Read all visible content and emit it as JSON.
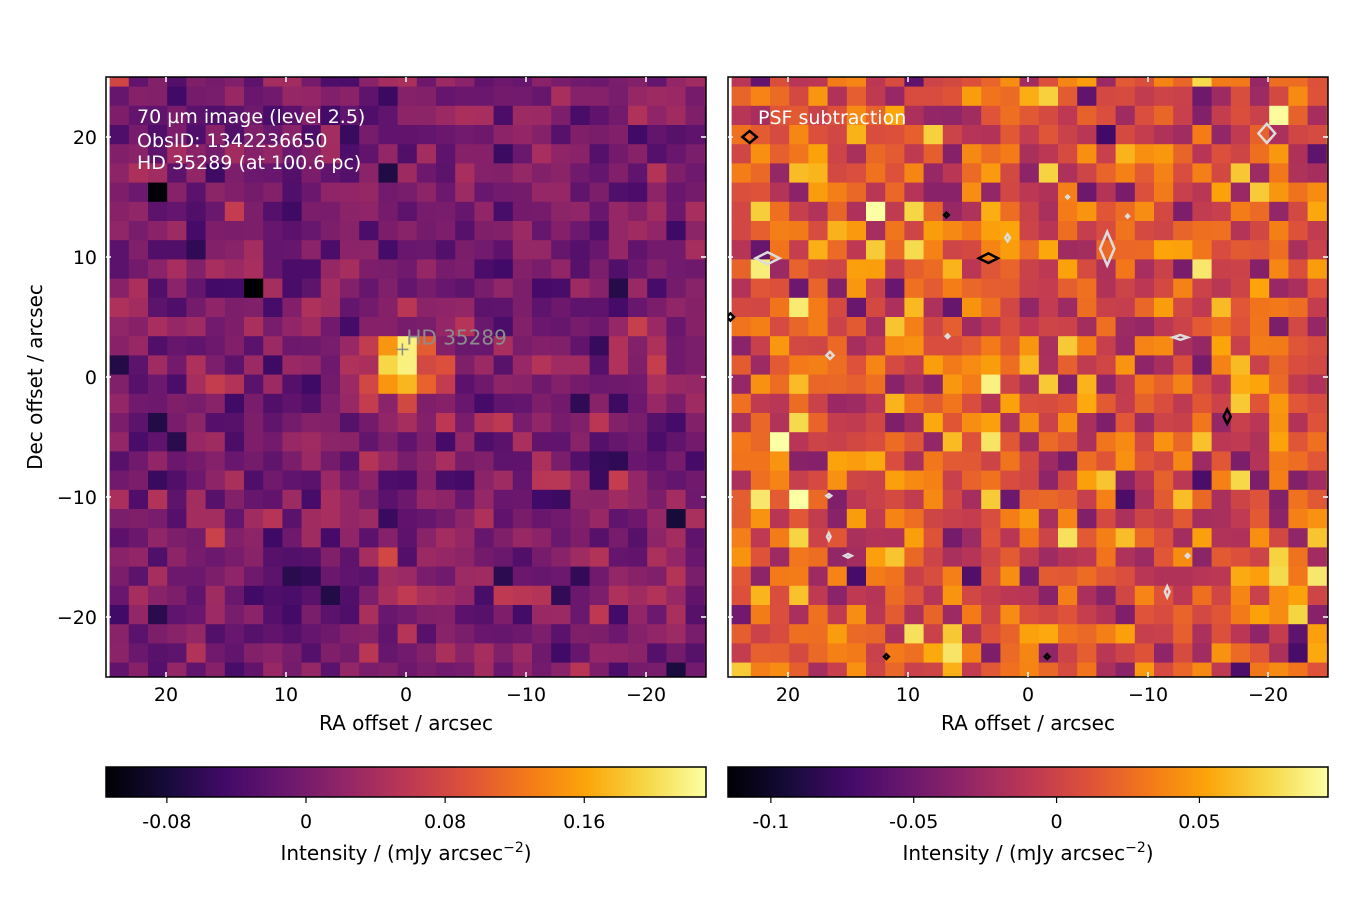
{
  "chart_data": [
    {
      "type": "heatmap",
      "panel": "left",
      "annotations": [
        "70 µm image (level 2.5)",
        "ObsID: 1342236650",
        "HD 35289 (at 100.6 pc)"
      ],
      "star_label": "HD 35289",
      "star_position": [
        0.3,
        2.3
      ],
      "xlabel": "RA offset / arcsec",
      "ylabel": "Dec offset / arcsec",
      "xlim": [
        25,
        -25
      ],
      "ylim": [
        -25,
        25
      ],
      "x_ticks": [
        20,
        10,
        0,
        -10,
        -20
      ],
      "y_ticks": [
        20,
        10,
        0,
        -10,
        -20
      ],
      "x_tick_labels": [
        "20",
        "10",
        "0",
        "−10",
        "−20"
      ],
      "y_tick_labels": [
        "20",
        "10",
        "0",
        "−10",
        "−20"
      ],
      "pixel_size_arcsec": 1.6,
      "grid_n": 32,
      "colormap": "inferno",
      "vmin": -0.115,
      "vmax": 0.23,
      "source_peak": {
        "x": 0.3,
        "y": 0.8,
        "peak": 0.215,
        "sigma": 2.2
      },
      "colorbar": {
        "label": "Intensity / (mJy arcsec",
        "label_exp": "−2",
        "label_end": ")",
        "ticks": [
          -0.08,
          0,
          0.08,
          0.16
        ],
        "tick_labels": [
          "-0.08",
          "0",
          "0.08",
          "0.16"
        ]
      },
      "grid": false
    },
    {
      "type": "heatmap",
      "panel": "right",
      "annotations": [
        "PSF subtraction"
      ],
      "xlabel": "RA offset / arcsec",
      "xlim": [
        25,
        -25
      ],
      "ylim": [
        -25,
        25
      ],
      "x_ticks": [
        20,
        10,
        0,
        -10,
        -20
      ],
      "x_tick_labels": [
        "20",
        "10",
        "0",
        "−10",
        "−20"
      ],
      "pixel_size_arcsec": 1.6,
      "grid_n": 32,
      "colormap": "inferno",
      "vmin": -0.115,
      "vmax": 0.095,
      "colorbar": {
        "label": "Intensity / (mJy arcsec",
        "label_exp": "−2",
        "label_end": ")",
        "ticks": [
          -0.1,
          -0.05,
          0,
          0.05
        ],
        "tick_labels": [
          "-0.1",
          "-0.05",
          "0",
          "0.05"
        ]
      },
      "contours": [
        {
          "color": "#000000",
          "x": 23.2,
          "y": 20.0,
          "rx": 0.6,
          "ry": 0.5
        },
        {
          "color": "#000000",
          "x": 3.3,
          "y": 9.9,
          "rx": 0.8,
          "ry": 0.4
        },
        {
          "color": "#000000",
          "x": -16.6,
          "y": -3.3,
          "rx": 0.3,
          "ry": 0.6
        },
        {
          "color": "#000000",
          "x": 24.8,
          "y": 5.0,
          "rx": 0.3,
          "ry": 0.3
        },
        {
          "color": "#000000",
          "x": 6.8,
          "y": 13.5,
          "rx": 0.2,
          "ry": 0.2
        },
        {
          "color": "#000000",
          "x": 11.8,
          "y": -23.3,
          "rx": 0.2,
          "ry": 0.2
        },
        {
          "color": "#000000",
          "x": -1.6,
          "y": -23.3,
          "rx": 0.2,
          "ry": 0.2
        },
        {
          "color": "#dcdcdc",
          "x": -19.9,
          "y": 20.3,
          "rx": 0.7,
          "ry": 0.8
        },
        {
          "color": "#dcdcdc",
          "x": 21.7,
          "y": 9.9,
          "rx": 1.0,
          "ry": 0.5
        },
        {
          "color": "#dcdcdc",
          "x": -6.6,
          "y": 10.7,
          "rx": 0.6,
          "ry": 1.4
        },
        {
          "color": "#dcdcdc",
          "x": 1.7,
          "y": 11.6,
          "rx": 0.2,
          "ry": 0.3
        },
        {
          "color": "#dcdcdc",
          "x": 16.5,
          "y": 1.8,
          "rx": 0.3,
          "ry": 0.3
        },
        {
          "color": "#dcdcdc",
          "x": 6.7,
          "y": 3.4,
          "rx": 0.15,
          "ry": 0.15
        },
        {
          "color": "#dcdcdc",
          "x": -12.7,
          "y": 3.3,
          "rx": 0.6,
          "ry": 0.2
        },
        {
          "color": "#dcdcdc",
          "x": -3.3,
          "y": 15.0,
          "rx": 0.12,
          "ry": 0.12
        },
        {
          "color": "#dcdcdc",
          "x": -8.3,
          "y": 13.4,
          "rx": 0.12,
          "ry": 0.12
        },
        {
          "color": "#dcdcdc",
          "x": 16.6,
          "y": -9.9,
          "rx": 0.2,
          "ry": 0.15
        },
        {
          "color": "#dcdcdc",
          "x": 16.6,
          "y": -13.3,
          "rx": 0.15,
          "ry": 0.3
        },
        {
          "color": "#dcdcdc",
          "x": 15.0,
          "y": -14.9,
          "rx": 0.3,
          "ry": 0.15
        },
        {
          "color": "#dcdcdc",
          "x": -13.3,
          "y": -14.9,
          "rx": 0.15,
          "ry": 0.15
        },
        {
          "color": "#dcdcdc",
          "x": -11.6,
          "y": -17.9,
          "rx": 0.2,
          "ry": 0.45
        }
      ],
      "grid": false
    }
  ]
}
